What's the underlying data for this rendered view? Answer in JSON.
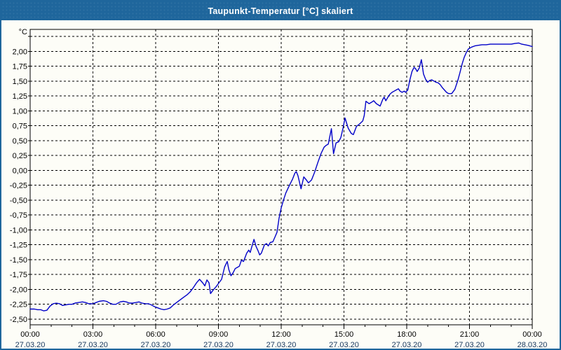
{
  "window": {
    "title": "Taupunkt-Temperatur [°C] skaliert"
  },
  "colors": {
    "title_bar": "#1f669c",
    "window_border": "#1f669c",
    "background": "#fdfdf7",
    "grid": "#000000",
    "axis": "#000000",
    "series_line": "#0000c8",
    "time_label": "#000000",
    "date_label": "#17375d",
    "y_label": "#000000",
    "title_text": "#ffffff"
  },
  "chart_data": {
    "type": "line",
    "title": "Taupunkt-Temperatur [°C] skaliert",
    "y_unit_label": "°C",
    "xlabel": "",
    "ylabel": "°C",
    "grid": "dashed",
    "legend": "none",
    "ylim": [
      -2.5,
      2.25
    ],
    "xlim_hours": [
      0,
      24
    ],
    "y_ticks": [
      {
        "value": 2.25,
        "label": ""
      },
      {
        "value": 2.0,
        "label": "2,00"
      },
      {
        "value": 1.75,
        "label": "1,75"
      },
      {
        "value": 1.5,
        "label": "1,50"
      },
      {
        "value": 1.25,
        "label": "1,25"
      },
      {
        "value": 1.0,
        "label": "1,00"
      },
      {
        "value": 0.75,
        "label": "0,75"
      },
      {
        "value": 0.5,
        "label": "0,50"
      },
      {
        "value": 0.25,
        "label": "0,25"
      },
      {
        "value": 0.0,
        "label": "0,00"
      },
      {
        "value": -0.25,
        "label": "-0,25"
      },
      {
        "value": -0.5,
        "label": "-0,50"
      },
      {
        "value": -0.75,
        "label": "-0,75"
      },
      {
        "value": -1.0,
        "label": "-1,00"
      },
      {
        "value": -1.25,
        "label": "-1,25"
      },
      {
        "value": -1.5,
        "label": "-1,50"
      },
      {
        "value": -1.75,
        "label": "-1,75"
      },
      {
        "value": -2.0,
        "label": "-2,00"
      },
      {
        "value": -2.25,
        "label": "-2,25"
      },
      {
        "value": -2.5,
        "label": "-2,50"
      }
    ],
    "x_major_ticks": [
      {
        "hour": 0,
        "time": "00:00",
        "date": "27.03.20"
      },
      {
        "hour": 3,
        "time": "03:00",
        "date": "27.03.20"
      },
      {
        "hour": 6,
        "time": "06:00",
        "date": "27.03.20"
      },
      {
        "hour": 9,
        "time": "09:00",
        "date": "27.03.20"
      },
      {
        "hour": 12,
        "time": "12:00",
        "date": "27.03.20"
      },
      {
        "hour": 15,
        "time": "15:00",
        "date": "27.03.20"
      },
      {
        "hour": 18,
        "time": "18:00",
        "date": "27.03.20"
      },
      {
        "hour": 21,
        "time": "21:00",
        "date": "27.03.20"
      },
      {
        "hour": 24,
        "time": "00:00",
        "date": "28.03.20"
      }
    ],
    "x_minor_tick_every_hours": 1,
    "series": [
      {
        "name": "Taupunkt",
        "points": [
          [
            0.0,
            -2.33
          ],
          [
            0.2,
            -2.33
          ],
          [
            0.35,
            -2.34
          ],
          [
            0.5,
            -2.34
          ],
          [
            0.65,
            -2.36
          ],
          [
            0.8,
            -2.35
          ],
          [
            0.95,
            -2.28
          ],
          [
            1.1,
            -2.24
          ],
          [
            1.25,
            -2.23
          ],
          [
            1.4,
            -2.24
          ],
          [
            1.55,
            -2.27
          ],
          [
            1.7,
            -2.26
          ],
          [
            1.85,
            -2.25
          ],
          [
            2.0,
            -2.25
          ],
          [
            2.15,
            -2.23
          ],
          [
            2.3,
            -2.22
          ],
          [
            2.5,
            -2.21
          ],
          [
            2.65,
            -2.22
          ],
          [
            2.8,
            -2.24
          ],
          [
            3.0,
            -2.24
          ],
          [
            3.15,
            -2.22
          ],
          [
            3.3,
            -2.2
          ],
          [
            3.5,
            -2.19
          ],
          [
            3.65,
            -2.2
          ],
          [
            3.8,
            -2.23
          ],
          [
            3.95,
            -2.25
          ],
          [
            4.1,
            -2.25
          ],
          [
            4.3,
            -2.21
          ],
          [
            4.45,
            -2.2
          ],
          [
            4.6,
            -2.21
          ],
          [
            4.75,
            -2.23
          ],
          [
            4.9,
            -2.23
          ],
          [
            5.05,
            -2.22
          ],
          [
            5.2,
            -2.21
          ],
          [
            5.35,
            -2.23
          ],
          [
            5.5,
            -2.24
          ],
          [
            5.65,
            -2.24
          ],
          [
            5.8,
            -2.26
          ],
          [
            5.95,
            -2.29
          ],
          [
            6.1,
            -2.31
          ],
          [
            6.25,
            -2.33
          ],
          [
            6.4,
            -2.34
          ],
          [
            6.55,
            -2.33
          ],
          [
            6.7,
            -2.31
          ],
          [
            6.85,
            -2.26
          ],
          [
            7.0,
            -2.22
          ],
          [
            7.15,
            -2.18
          ],
          [
            7.3,
            -2.14
          ],
          [
            7.5,
            -2.09
          ],
          [
            7.65,
            -2.04
          ],
          [
            7.8,
            -1.97
          ],
          [
            7.95,
            -1.89
          ],
          [
            8.1,
            -1.83
          ],
          [
            8.25,
            -1.89
          ],
          [
            8.35,
            -1.94
          ],
          [
            8.45,
            -1.84
          ],
          [
            8.55,
            -1.89
          ],
          [
            8.62,
            -2.07
          ],
          [
            8.75,
            -2.01
          ],
          [
            8.9,
            -1.95
          ],
          [
            9.0,
            -1.9
          ],
          [
            9.15,
            -1.83
          ],
          [
            9.3,
            -1.62
          ],
          [
            9.42,
            -1.53
          ],
          [
            9.5,
            -1.67
          ],
          [
            9.6,
            -1.77
          ],
          [
            9.7,
            -1.72
          ],
          [
            9.8,
            -1.65
          ],
          [
            9.9,
            -1.63
          ],
          [
            10.0,
            -1.61
          ],
          [
            10.1,
            -1.51
          ],
          [
            10.2,
            -1.53
          ],
          [
            10.35,
            -1.39
          ],
          [
            10.45,
            -1.34
          ],
          [
            10.52,
            -1.38
          ],
          [
            10.6,
            -1.28
          ],
          [
            10.7,
            -1.16
          ],
          [
            10.8,
            -1.28
          ],
          [
            10.88,
            -1.34
          ],
          [
            10.97,
            -1.42
          ],
          [
            11.05,
            -1.39
          ],
          [
            11.2,
            -1.25
          ],
          [
            11.3,
            -1.23
          ],
          [
            11.38,
            -1.27
          ],
          [
            11.48,
            -1.21
          ],
          [
            11.6,
            -1.2
          ],
          [
            11.7,
            -1.12
          ],
          [
            11.8,
            -1.04
          ],
          [
            11.9,
            -0.8
          ],
          [
            12.0,
            -0.63
          ],
          [
            12.1,
            -0.51
          ],
          [
            12.22,
            -0.38
          ],
          [
            12.37,
            -0.27
          ],
          [
            12.54,
            -0.15
          ],
          [
            12.65,
            -0.05
          ],
          [
            12.72,
            -0.02
          ],
          [
            12.8,
            -0.09
          ],
          [
            12.95,
            -0.31
          ],
          [
            13.08,
            -0.11
          ],
          [
            13.2,
            -0.16
          ],
          [
            13.3,
            -0.21
          ],
          [
            13.45,
            -0.16
          ],
          [
            13.6,
            -0.03
          ],
          [
            13.75,
            0.13
          ],
          [
            13.9,
            0.28
          ],
          [
            14.05,
            0.39
          ],
          [
            14.15,
            0.42
          ],
          [
            14.25,
            0.44
          ],
          [
            14.4,
            0.7
          ],
          [
            14.5,
            0.28
          ],
          [
            14.62,
            0.46
          ],
          [
            14.75,
            0.48
          ],
          [
            14.85,
            0.55
          ],
          [
            14.95,
            0.7
          ],
          [
            15.05,
            0.88
          ],
          [
            15.2,
            0.71
          ],
          [
            15.35,
            0.62
          ],
          [
            15.45,
            0.6
          ],
          [
            15.6,
            0.74
          ],
          [
            15.75,
            0.78
          ],
          [
            15.9,
            0.83
          ],
          [
            15.97,
            0.92
          ],
          [
            16.05,
            1.16
          ],
          [
            16.2,
            1.12
          ],
          [
            16.3,
            1.14
          ],
          [
            16.42,
            1.17
          ],
          [
            16.55,
            1.12
          ],
          [
            16.73,
            1.08
          ],
          [
            16.85,
            1.19
          ],
          [
            16.92,
            1.23
          ],
          [
            17.0,
            1.17
          ],
          [
            17.1,
            1.23
          ],
          [
            17.2,
            1.28
          ],
          [
            17.3,
            1.31
          ],
          [
            17.4,
            1.33
          ],
          [
            17.5,
            1.35
          ],
          [
            17.6,
            1.37
          ],
          [
            17.68,
            1.33
          ],
          [
            17.78,
            1.31
          ],
          [
            17.88,
            1.33
          ],
          [
            17.95,
            1.31
          ],
          [
            18.05,
            1.35
          ],
          [
            18.15,
            1.52
          ],
          [
            18.25,
            1.66
          ],
          [
            18.35,
            1.73
          ],
          [
            18.42,
            1.71
          ],
          [
            18.5,
            1.66
          ],
          [
            18.6,
            1.72
          ],
          [
            18.7,
            1.86
          ],
          [
            18.8,
            1.62
          ],
          [
            18.9,
            1.53
          ],
          [
            19.0,
            1.48
          ],
          [
            19.1,
            1.51
          ],
          [
            19.2,
            1.52
          ],
          [
            19.3,
            1.5
          ],
          [
            19.4,
            1.48
          ],
          [
            19.5,
            1.47
          ],
          [
            19.6,
            1.44
          ],
          [
            19.7,
            1.39
          ],
          [
            19.8,
            1.35
          ],
          [
            19.9,
            1.31
          ],
          [
            20.0,
            1.29
          ],
          [
            20.15,
            1.29
          ],
          [
            20.3,
            1.36
          ],
          [
            20.45,
            1.52
          ],
          [
            20.55,
            1.65
          ],
          [
            20.65,
            1.79
          ],
          [
            20.75,
            1.9
          ],
          [
            20.85,
            1.98
          ],
          [
            20.95,
            2.04
          ],
          [
            21.1,
            2.07
          ],
          [
            21.25,
            2.09
          ],
          [
            21.4,
            2.1
          ],
          [
            21.6,
            2.11
          ],
          [
            21.8,
            2.11
          ],
          [
            22.0,
            2.12
          ],
          [
            22.2,
            2.12
          ],
          [
            22.4,
            2.12
          ],
          [
            22.6,
            2.12
          ],
          [
            22.8,
            2.12
          ],
          [
            23.0,
            2.12
          ],
          [
            23.15,
            2.13
          ],
          [
            23.35,
            2.14
          ],
          [
            23.5,
            2.12
          ],
          [
            23.65,
            2.11
          ],
          [
            23.8,
            2.1
          ],
          [
            24.0,
            2.08
          ]
        ]
      }
    ]
  }
}
